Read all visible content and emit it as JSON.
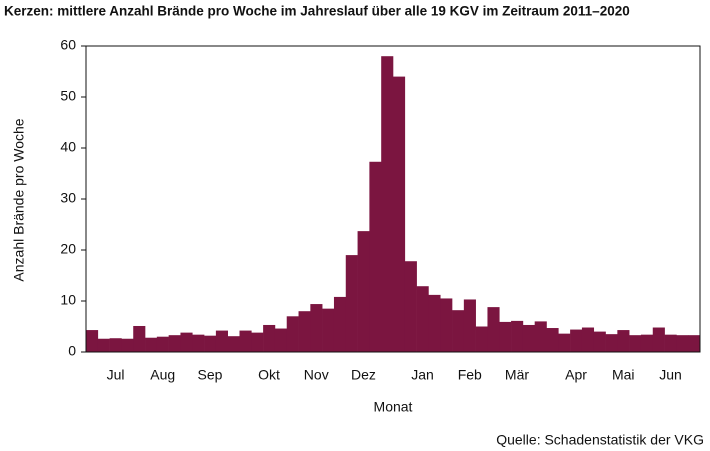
{
  "chart_data": {
    "type": "bar",
    "title": "Kerzen: mittlere Anzahl Brände pro Woche im Jahreslauf über alle 19 KGV im Zeitraum 2011–2020",
    "y_label": "Anzahl Brände pro Woche",
    "x_label": "Monat",
    "source": "Quelle: Schadenstatistik der VKG",
    "categories": [
      null,
      null,
      "Jul",
      null,
      null,
      null,
      "Aug",
      null,
      null,
      null,
      "Sep",
      null,
      null,
      null,
      null,
      "Okt",
      null,
      null,
      null,
      "Nov",
      null,
      null,
      null,
      "Dez",
      null,
      null,
      null,
      null,
      "Jan",
      null,
      null,
      null,
      "Feb",
      null,
      null,
      null,
      "Mär",
      null,
      null,
      null,
      null,
      "Apr",
      null,
      null,
      null,
      "Mai",
      null,
      null,
      null,
      "Jun",
      null,
      null
    ],
    "values": [
      4.3,
      2.6,
      2.7,
      2.6,
      5.1,
      2.8,
      3.0,
      3.3,
      3.8,
      3.4,
      3.2,
      4.2,
      3.1,
      4.2,
      3.8,
      5.3,
      4.6,
      7.0,
      8.0,
      9.4,
      8.5,
      10.8,
      19.0,
      23.7,
      37.3,
      58.0,
      54.0,
      17.8,
      12.9,
      11.2,
      10.5,
      8.2,
      10.3,
      5.0,
      8.8,
      5.9,
      6.1,
      5.3,
      6.0,
      4.7,
      3.6,
      4.4,
      4.8,
      4.0,
      3.5,
      4.3,
      3.3,
      3.4,
      4.8,
      3.4,
      3.3,
      3.3
    ],
    "color": "#7b1540",
    "ylim": [
      0,
      60
    ],
    "yticks": [
      0,
      10,
      20,
      30,
      40,
      50,
      60
    ],
    "grid": false
  }
}
